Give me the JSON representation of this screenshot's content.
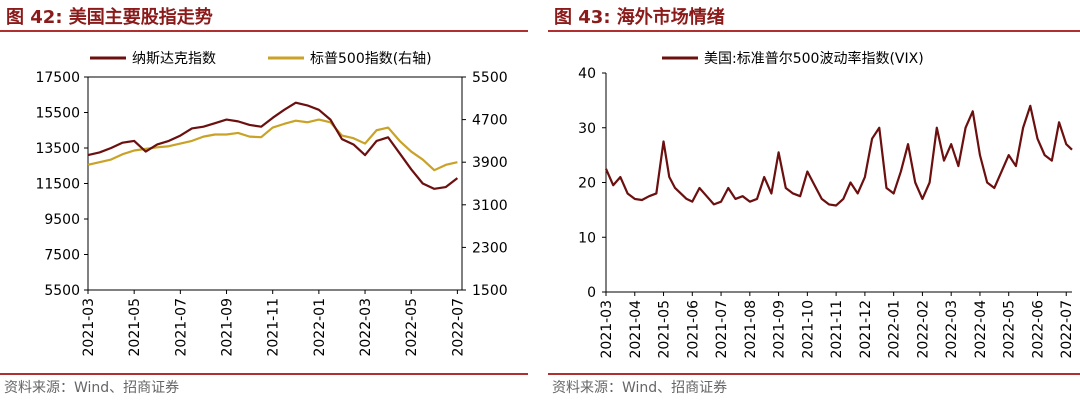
{
  "colors": {
    "nasdaq": "#6B0F0F",
    "sp500": "#C9A227",
    "vix": "#6B0F0F",
    "accent": "#B03030",
    "title": "#8B1A1A"
  },
  "chart_data": [
    {
      "type": "line",
      "figure_label": "图 42:",
      "title": "美国主要股指走势",
      "source": "资料来源：Wind、招商证券",
      "x_ticks": [
        "2021-03",
        "2021-05",
        "2021-07",
        "2021-09",
        "2021-11",
        "2022-01",
        "2022-03",
        "2022-05",
        "2022-07"
      ],
      "x_range": [
        0,
        16.2
      ],
      "left_axis": {
        "ticks": [
          5500,
          7500,
          9500,
          11500,
          13500,
          15500,
          17500
        ],
        "ylim": [
          5500,
          17500
        ]
      },
      "right_axis": {
        "label": "右轴",
        "ticks": [
          1500,
          2300,
          3100,
          3900,
          4700,
          5500
        ],
        "ylim": [
          1500,
          5500
        ]
      },
      "series": [
        {
          "name": "纳斯达克指数",
          "axis": "left",
          "x": [
            0,
            0.5,
            1,
            1.5,
            2,
            2.5,
            3,
            3.5,
            4,
            4.5,
            5,
            5.5,
            6,
            6.5,
            7,
            7.5,
            8,
            8.5,
            9,
            9.5,
            10,
            10.5,
            11,
            11.5,
            12,
            12.5,
            13,
            13.5,
            14,
            14.5,
            15,
            15.5,
            16
          ],
          "values": [
            13100,
            13250,
            13500,
            13800,
            13900,
            13300,
            13700,
            13900,
            14200,
            14600,
            14700,
            14900,
            15100,
            15000,
            14800,
            14700,
            15200,
            15650,
            16050,
            15900,
            15650,
            15100,
            14000,
            13700,
            13100,
            13900,
            14100,
            13200,
            12300,
            11500,
            11200,
            11300,
            11800
          ]
        },
        {
          "name": "标普500指数(右轴)",
          "axis": "right",
          "x": [
            0,
            0.5,
            1,
            1.5,
            2,
            2.5,
            3,
            3.5,
            4,
            4.5,
            5,
            5.5,
            6,
            6.5,
            7,
            7.5,
            8,
            8.5,
            9,
            9.5,
            10,
            10.5,
            11,
            11.5,
            12,
            12.5,
            13,
            13.5,
            14,
            14.5,
            15,
            15.5,
            16
          ],
          "values": [
            3850,
            3900,
            3950,
            4050,
            4120,
            4150,
            4180,
            4200,
            4250,
            4300,
            4380,
            4420,
            4420,
            4450,
            4380,
            4370,
            4550,
            4620,
            4680,
            4650,
            4700,
            4650,
            4400,
            4350,
            4250,
            4500,
            4550,
            4300,
            4100,
            3950,
            3750,
            3850,
            3900
          ]
        }
      ]
    },
    {
      "type": "line",
      "figure_label": "图 43:",
      "title": "海外市场情绪",
      "source": "资料来源：Wind、招商证券",
      "x_ticks": [
        "2021-03",
        "2021-04",
        "2021-05",
        "2021-06",
        "2021-07",
        "2021-08",
        "2021-09",
        "2021-10",
        "2021-11",
        "2021-12",
        "2022-01",
        "2022-02",
        "2022-03",
        "2022-04",
        "2022-05",
        "2022-06",
        "2022-07"
      ],
      "x_range": [
        0,
        16.2
      ],
      "left_axis": {
        "ticks": [
          0,
          10,
          20,
          30,
          40
        ],
        "ylim": [
          0,
          40
        ]
      },
      "series": [
        {
          "name": "美国:标准普尔500波动率指数(VIX)",
          "axis": "left",
          "x": [
            0,
            0.25,
            0.5,
            0.75,
            1,
            1.25,
            1.5,
            1.75,
            2,
            2.2,
            2.4,
            2.6,
            2.8,
            3,
            3.25,
            3.5,
            3.75,
            4,
            4.25,
            4.5,
            4.75,
            5,
            5.25,
            5.5,
            5.75,
            6,
            6.25,
            6.5,
            6.75,
            7,
            7.25,
            7.5,
            7.75,
            8,
            8.25,
            8.5,
            8.75,
            9,
            9.25,
            9.5,
            9.75,
            10,
            10.25,
            10.5,
            10.75,
            11,
            11.25,
            11.5,
            11.75,
            12,
            12.25,
            12.5,
            12.75,
            13,
            13.25,
            13.5,
            13.75,
            14,
            14.25,
            14.5,
            14.75,
            15,
            15.25,
            15.5,
            15.75,
            16,
            16.2
          ],
          "values": [
            22.5,
            19.5,
            21,
            18,
            17,
            16.8,
            17.5,
            18,
            27.5,
            21,
            19,
            18,
            17,
            16.5,
            19,
            17.5,
            16,
            16.5,
            19,
            17,
            17.5,
            16.5,
            17,
            21,
            18,
            25.5,
            19,
            18,
            17.5,
            22,
            19.5,
            17,
            16,
            15.8,
            17,
            20,
            18,
            21,
            28,
            30,
            19,
            18,
            22,
            27,
            20,
            17,
            20,
            30,
            24,
            27,
            23,
            30,
            33,
            25,
            20,
            19,
            22,
            25,
            23,
            30,
            34,
            28,
            25,
            24,
            31,
            27,
            26
          ]
        }
      ]
    }
  ]
}
